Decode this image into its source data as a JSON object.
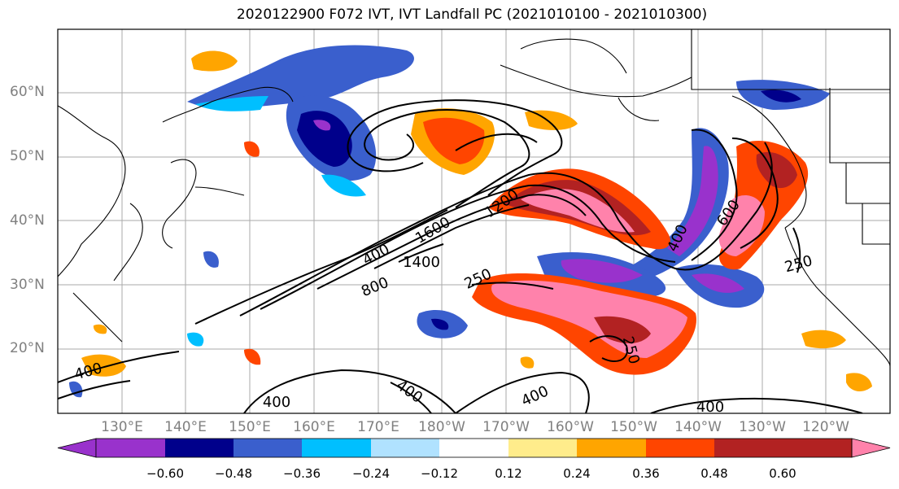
{
  "title": "2020122900 F072 IVT, IVT Landfall PC (2021010100 - 2021010300)",
  "lat_labels": [
    "60°N",
    "50°N",
    "40°N",
    "30°N",
    "20°N"
  ],
  "lon_labels": [
    "130°E",
    "140°E",
    "150°E",
    "160°E",
    "170°E",
    "180°W",
    "170°W",
    "160°W",
    "150°W",
    "140°W",
    "130°W",
    "120°W"
  ],
  "contour_labels": [
    "400",
    "800",
    "1200",
    "1400",
    "1600",
    "250",
    "250",
    "250",
    "400",
    "400",
    "400",
    "400",
    "600",
    "400",
    "400"
  ],
  "colorbar": {
    "colors": [
      "#9932cc",
      "#00008b",
      "#3a5fcd",
      "#00bfff",
      "#b0e2ff",
      "#ffffff",
      "#ffec8b",
      "#ffa500",
      "#ff4500",
      "#b22222",
      "#ff82ab"
    ],
    "tick_labels": [
      "−0.60",
      "−0.48",
      "−0.36",
      "−0.24",
      "−0.12",
      "0.12",
      "0.24",
      "0.36",
      "0.48",
      "0.60"
    ]
  }
}
